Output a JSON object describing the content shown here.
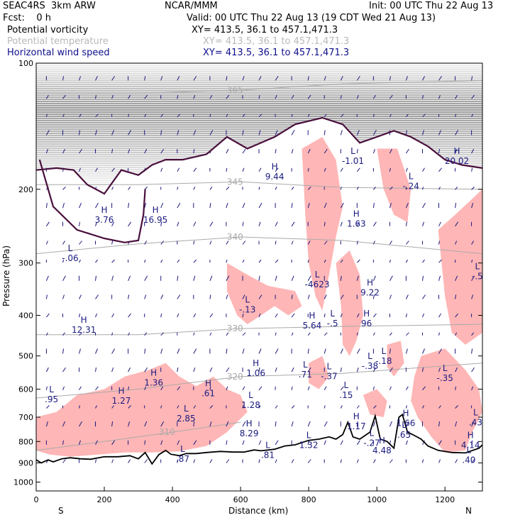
{
  "header": {
    "model": "SEAC4RS  3km ARW",
    "org": "NCAR/MMM",
    "init": "Init: 00 UTC Thu 22 Aug 13",
    "fcst": "Fcst:    0 h",
    "valid": "Valid: 00 UTC Thu 22 Aug 13 (19 CDT Wed 21 Aug 13)"
  },
  "fields": [
    {
      "name": "Potential vorticity",
      "xy": "XY= 413.5, 36.1 to 457.1,471.3",
      "color": "#000000"
    },
    {
      "name": "Potential temperature",
      "xy": "XY= 413.5, 36.1 to 457.1,471.3",
      "color": "#b9b9b9"
    },
    {
      "name": "Horizontal wind speed",
      "xy": "XY= 413.5, 36.1 to 457.1,471.3",
      "color": "#0f0f8c"
    }
  ],
  "colors": {
    "pv_shade": "#ffb6b6",
    "strat_gray": "#7a7a7a",
    "pv_contour": "#4a0f3c",
    "theta": "#aaaaaa",
    "wind": "#1a1a80",
    "terrain": "#000000"
  },
  "chart_data": {
    "type": "cross-section",
    "xlabel": "Distance (km)",
    "ylabel": "Pressure (hPa)",
    "xlim": [
      0,
      1310
    ],
    "ylim": [
      1050,
      100
    ],
    "y_scale": "log",
    "xticks": [
      0,
      200,
      400,
      600,
      800,
      1000,
      1200
    ],
    "yticks": [
      100,
      200,
      300,
      400,
      500,
      600,
      700,
      800,
      900,
      1000
    ],
    "endpoint_labels": [
      "S",
      "N"
    ],
    "terrain_surface_hPa": [
      [
        0,
        885
      ],
      [
        15,
        900
      ],
      [
        35,
        885
      ],
      [
        50,
        895
      ],
      [
        75,
        880
      ],
      [
        100,
        875
      ],
      [
        130,
        880
      ],
      [
        160,
        882
      ],
      [
        200,
        870
      ],
      [
        240,
        870
      ],
      [
        275,
        865
      ],
      [
        300,
        880
      ],
      [
        320,
        850
      ],
      [
        340,
        905
      ],
      [
        360,
        860
      ],
      [
        380,
        840
      ],
      [
        395,
        858
      ],
      [
        420,
        865
      ],
      [
        440,
        855
      ],
      [
        470,
        855
      ],
      [
        500,
        850
      ],
      [
        540,
        845
      ],
      [
        580,
        848
      ],
      [
        610,
        848
      ],
      [
        640,
        838
      ],
      [
        660,
        842
      ],
      [
        700,
        835
      ],
      [
        730,
        820
      ],
      [
        760,
        815
      ],
      [
        800,
        795
      ],
      [
        830,
        790
      ],
      [
        860,
        780
      ],
      [
        880,
        790
      ],
      [
        900,
        770
      ],
      [
        915,
        720
      ],
      [
        930,
        780
      ],
      [
        950,
        790
      ],
      [
        980,
        760
      ],
      [
        995,
        695
      ],
      [
        1010,
        790
      ],
      [
        1030,
        800
      ],
      [
        1050,
        830
      ],
      [
        1065,
        700
      ],
      [
        1075,
        690
      ],
      [
        1090,
        760
      ],
      [
        1105,
        770
      ],
      [
        1130,
        790
      ],
      [
        1150,
        820
      ],
      [
        1180,
        840
      ],
      [
        1220,
        850
      ],
      [
        1260,
        852
      ],
      [
        1300,
        830
      ],
      [
        1310,
        815
      ]
    ],
    "tropopause_pv_hPa": [
      [
        0,
        180
      ],
      [
        60,
        178
      ],
      [
        110,
        180
      ],
      [
        150,
        195
      ],
      [
        200,
        205
      ],
      [
        250,
        180
      ],
      [
        300,
        185
      ],
      [
        340,
        175
      ],
      [
        380,
        170
      ],
      [
        430,
        170
      ],
      [
        500,
        165
      ],
      [
        560,
        150
      ],
      [
        620,
        160
      ],
      [
        700,
        150
      ],
      [
        760,
        140
      ],
      [
        840,
        135
      ],
      [
        900,
        140
      ],
      [
        950,
        155
      ],
      [
        1000,
        150
      ],
      [
        1050,
        145
      ],
      [
        1100,
        150
      ],
      [
        1150,
        158
      ],
      [
        1200,
        170
      ],
      [
        1250,
        175
      ],
      [
        1310,
        178
      ]
    ],
    "theta_contours_K": [
      {
        "value": "365",
        "label": "365",
        "points": [
          [
            0,
            118
          ],
          [
            300,
            118
          ],
          [
            600,
            116
          ],
          [
            900,
            112
          ],
          [
            1310,
            110
          ]
        ]
      },
      {
        "value": "345",
        "label": "345",
        "points": [
          [
            0,
            195
          ],
          [
            300,
            195
          ],
          [
            600,
            192
          ],
          [
            900,
            198
          ],
          [
            1310,
            200
          ]
        ]
      },
      {
        "value": "340",
        "label": "340",
        "points": [
          [
            0,
            285
          ],
          [
            300,
            270
          ],
          [
            600,
            260
          ],
          [
            900,
            265
          ],
          [
            1310,
            285
          ]
        ]
      },
      {
        "value": "330",
        "label": "330",
        "points": [
          [
            0,
            445
          ],
          [
            300,
            445
          ],
          [
            600,
            430
          ],
          [
            900,
            425
          ],
          [
            1310,
            420
          ]
        ]
      },
      {
        "value": "320",
        "label": "320",
        "points": [
          [
            0,
            630
          ],
          [
            300,
            600
          ],
          [
            600,
            560
          ],
          [
            900,
            550
          ],
          [
            1310,
            520
          ]
        ]
      },
      {
        "value": "310",
        "label": "310",
        "points": [
          [
            0,
            840
          ],
          [
            200,
            800
          ],
          [
            400,
            760
          ],
          [
            600,
            720
          ]
        ]
      }
    ],
    "pv_extrema": [
      {
        "type": "H",
        "value": "3.76",
        "x": 200,
        "p": 235
      },
      {
        "type": "H",
        "value": "16.95",
        "x": 350,
        "p": 235
      },
      {
        "type": "L",
        "value": "-.06",
        "x": 100,
        "p": 290
      },
      {
        "type": "H",
        "value": "9.44",
        "x": 700,
        "p": 185
      },
      {
        "type": "L",
        "value": "-1.01",
        "x": 930,
        "p": 170
      },
      {
        "type": "L",
        "value": "-.24",
        "x": 1100,
        "p": 195
      },
      {
        "type": "H",
        "value": "20.02",
        "x": 1235,
        "p": 170
      },
      {
        "type": "H",
        "value": "1.63",
        "x": 940,
        "p": 240
      },
      {
        "type": "L",
        "value": "-4623",
        "x": 825,
        "p": 335
      },
      {
        "type": "H",
        "value": "9.22",
        "x": 980,
        "p": 350
      },
      {
        "type": "L",
        "value": "-.5",
        "x": 1295,
        "p": 320
      },
      {
        "type": "L",
        "value": "-.13",
        "x": 620,
        "p": 385
      },
      {
        "type": "H",
        "value": "5.64",
        "x": 810,
        "p": 420
      },
      {
        "type": "L",
        "value": "-.5",
        "x": 870,
        "p": 415
      },
      {
        "type": "H",
        "value": "96",
        "x": 970,
        "p": 415
      },
      {
        "type": "H",
        "value": "12.31",
        "x": 140,
        "p": 430
      },
      {
        "type": "L",
        "value": "-.38",
        "x": 980,
        "p": 525
      },
      {
        "type": "L",
        "value": "-.18",
        "x": 1020,
        "p": 510
      },
      {
        "type": "H",
        "value": "1.06",
        "x": 645,
        "p": 545
      },
      {
        "type": "L",
        "value": ".71",
        "x": 790,
        "p": 550
      },
      {
        "type": "L",
        "value": "-.37",
        "x": 860,
        "p": 555
      },
      {
        "type": "L",
        "value": "-.35",
        "x": 1200,
        "p": 560
      },
      {
        "type": "H",
        "value": "1.36",
        "x": 345,
        "p": 575
      },
      {
        "type": "L",
        "value": ".95",
        "x": 45,
        "p": 630
      },
      {
        "type": "H",
        "value": "1.27",
        "x": 250,
        "p": 635
      },
      {
        "type": "H",
        "value": ".61",
        "x": 505,
        "p": 610
      },
      {
        "type": "L",
        "value": "1.28",
        "x": 630,
        "p": 650
      },
      {
        "type": "L",
        "value": ".15",
        "x": 910,
        "p": 615
      },
      {
        "type": "L",
        "value": "2.85",
        "x": 440,
        "p": 700
      },
      {
        "type": "H",
        "value": "1.17",
        "x": 940,
        "p": 730
      },
      {
        "type": "H",
        "value": "1.66",
        "x": 1085,
        "p": 718
      },
      {
        "type": "L",
        "value": ".43",
        "x": 1290,
        "p": 715
      },
      {
        "type": "H",
        "value": "8.29",
        "x": 625,
        "p": 760
      },
      {
        "type": "L",
        "value": ".65",
        "x": 1080,
        "p": 765
      },
      {
        "type": "L",
        "value": "1.32",
        "x": 800,
        "p": 810
      },
      {
        "type": "L",
        "value": "-.27",
        "x": 985,
        "p": 800
      },
      {
        "type": "H",
        "value": "4.48",
        "x": 1015,
        "p": 835
      },
      {
        "type": "H",
        "value": "4.14",
        "x": 1275,
        "p": 810
      },
      {
        "type": "L",
        "value": ".87",
        "x": 430,
        "p": 875
      },
      {
        "type": "L",
        "value": ".81",
        "x": 680,
        "p": 855
      },
      {
        "type": "L",
        "value": ".40",
        "x": 1270,
        "p": 880
      }
    ]
  }
}
